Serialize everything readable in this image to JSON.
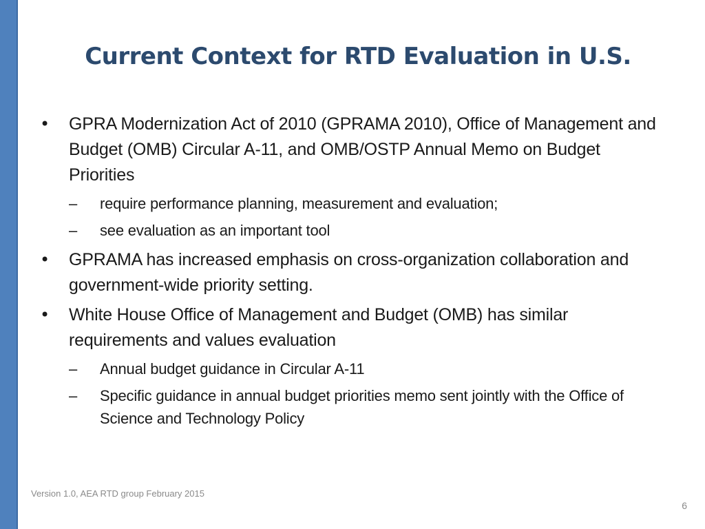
{
  "slide": {
    "title": "Current Context for RTD Evaluation in U.S.",
    "bullets": [
      {
        "marker": "•",
        "text": "GPRA Modernization Act of 2010 (GPRAMA 2010), Office of Management and Budget (OMB) Circular A-11, and OMB/OSTP Annual Memo on Budget Priorities",
        "subs": [
          {
            "marker": "–",
            "text": "require performance planning, measurement and evaluation;"
          },
          {
            "marker": "–",
            "text": "see evaluation as an important tool"
          }
        ]
      },
      {
        "marker": "•",
        "text": "GPRAMA has increased emphasis on cross-organization collaboration and government-wide priority setting."
      },
      {
        "marker": "•",
        "text": "White House Office of Management and Budget (OMB) has similar requirements and values evaluation",
        "subs": [
          {
            "marker": "–",
            "text": "Annual budget guidance in Circular A-11"
          },
          {
            "marker": "–",
            "text": "Specific guidance in annual budget priorities memo sent jointly with the Office of Science and Technology Policy"
          }
        ]
      }
    ],
    "footer": "Version 1.0, AEA RTD group February 2015",
    "page_number": "6",
    "colors": {
      "accent_bar": "#4f81bd",
      "title": "#2c4a6e",
      "body_text": "#1a1a1a",
      "footer_text": "#8a8a8a"
    }
  }
}
